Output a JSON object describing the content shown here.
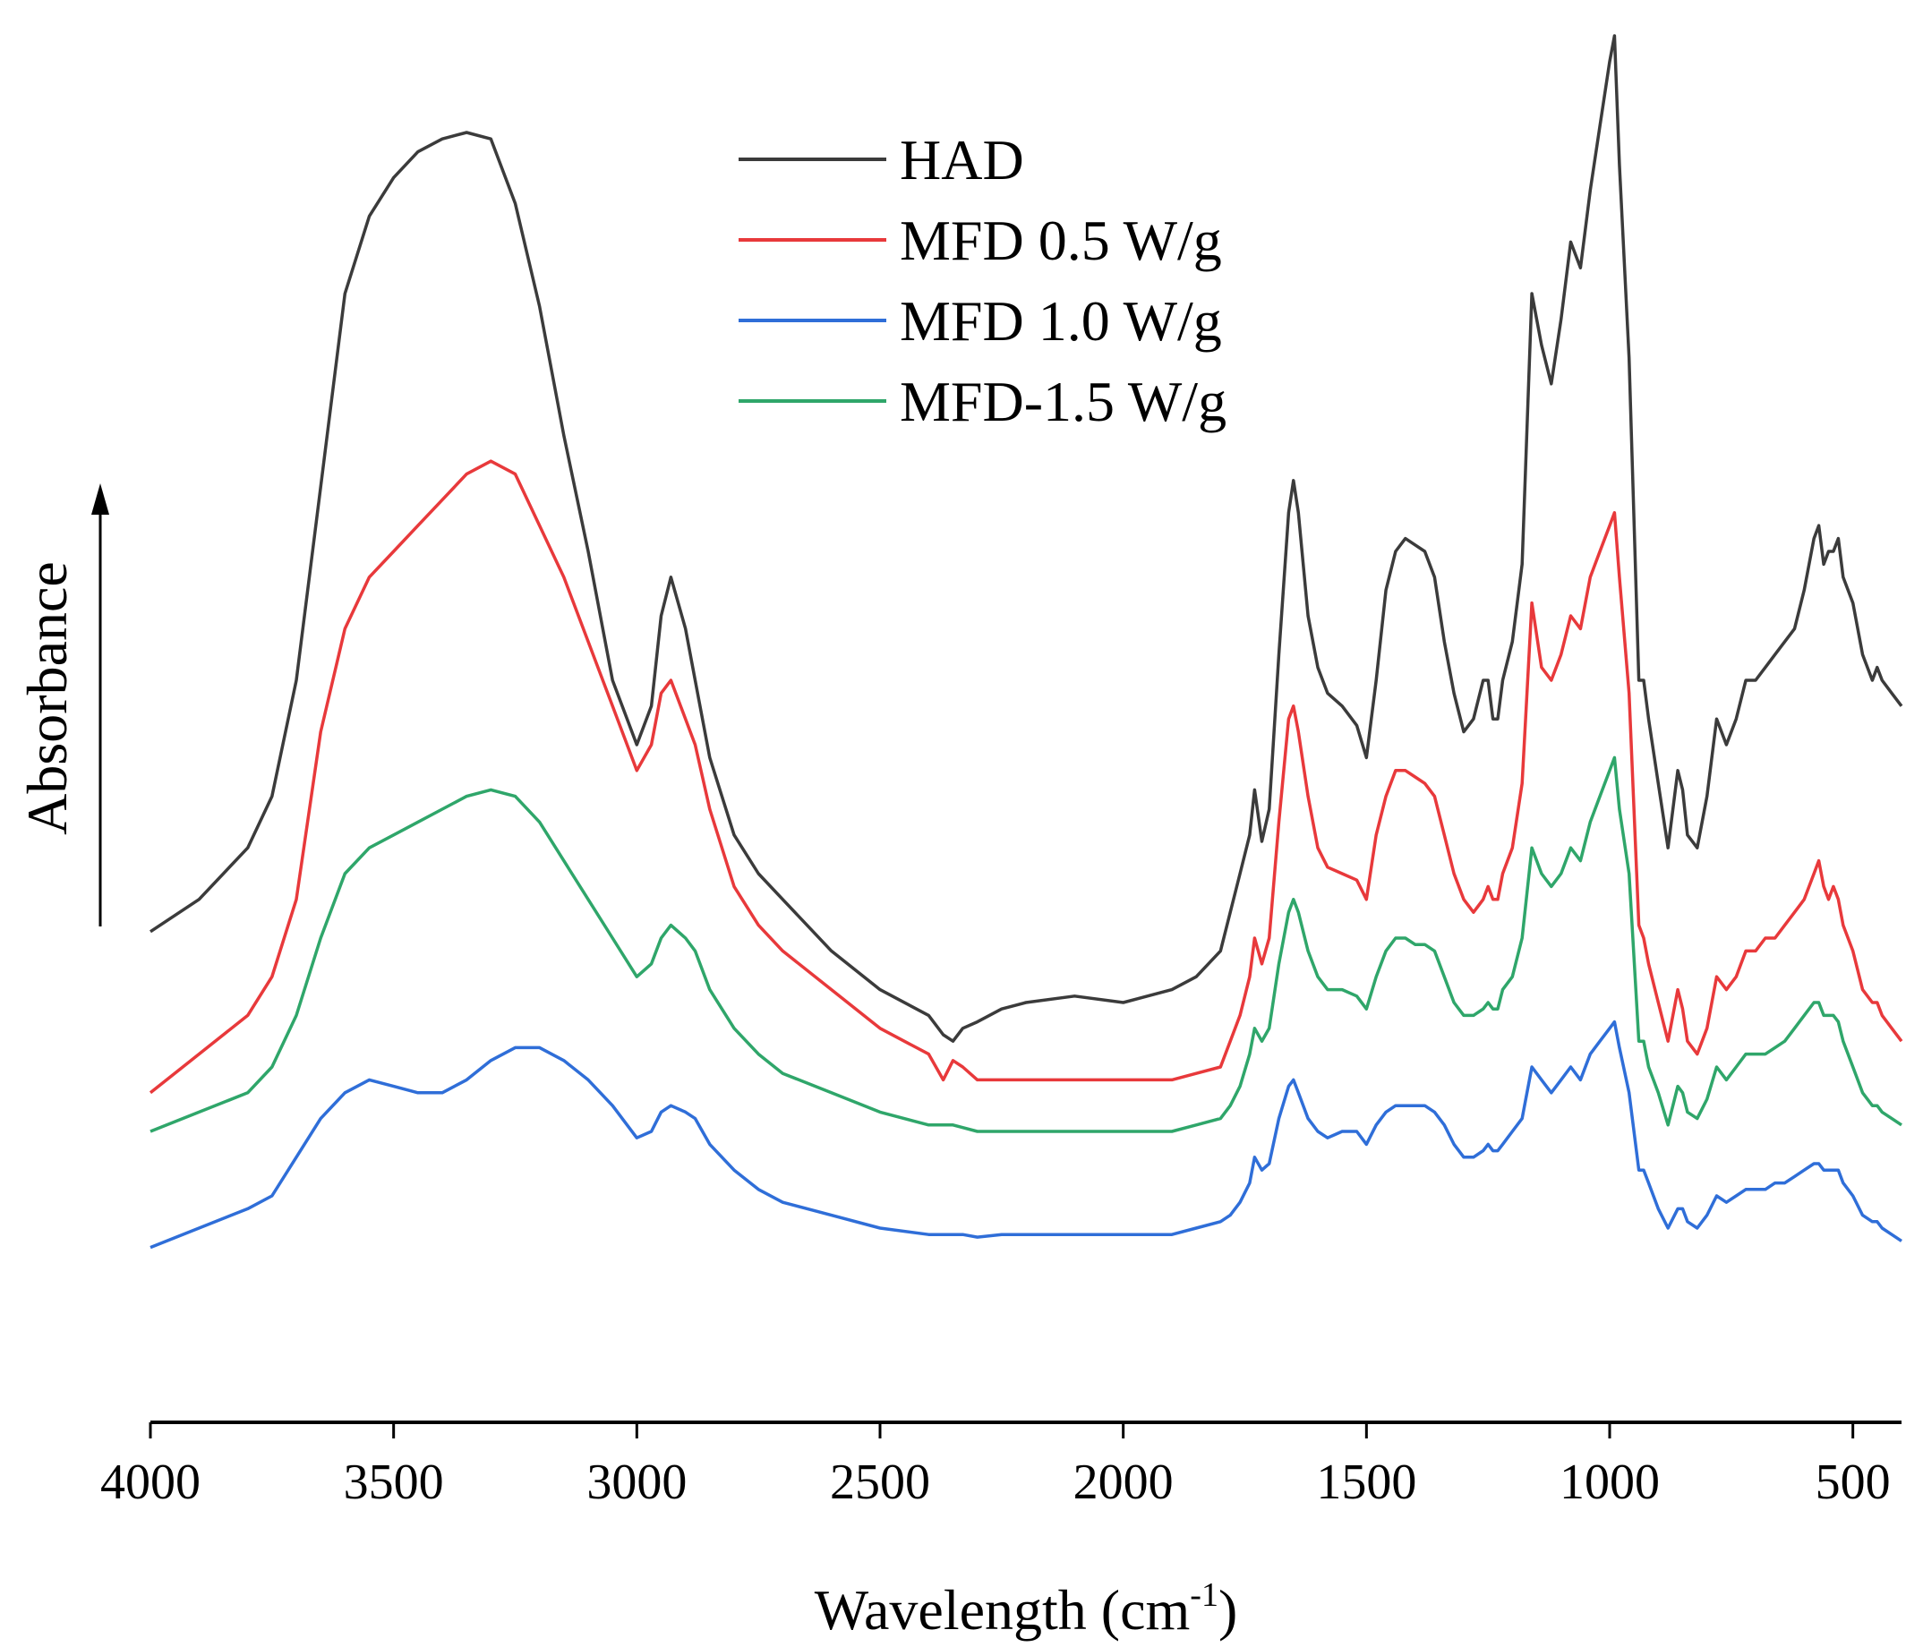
{
  "chart_data": {
    "type": "line",
    "title": "",
    "xlabel": "Wavelength (cm",
    "xlabel_sup": "-1",
    "xlabel_tail": ")",
    "ylabel": "Absorbance",
    "xlim": [
      4000,
      400
    ],
    "ylim": [
      0,
      1
    ],
    "x_reversed": true,
    "yaxis_style": "arrow-only, no ticks",
    "x_ticks": [
      4000,
      3500,
      3000,
      2500,
      2000,
      1500,
      1000,
      500
    ],
    "x_tick_labels": [
      "4000",
      "3500",
      "3000",
      "2500",
      "2000",
      "1500",
      "1000",
      "500"
    ],
    "grid": false,
    "legend_position": "top-center",
    "x": [
      4000,
      3900,
      3800,
      3750,
      3700,
      3650,
      3600,
      3550,
      3500,
      3450,
      3400,
      3350,
      3300,
      3250,
      3200,
      3150,
      3100,
      3050,
      3000,
      2970,
      2950,
      2930,
      2900,
      2880,
      2850,
      2800,
      2750,
      2700,
      2600,
      2500,
      2400,
      2370,
      2350,
      2330,
      2300,
      2250,
      2200,
      2100,
      2000,
      1900,
      1850,
      1800,
      1780,
      1760,
      1740,
      1730,
      1715,
      1700,
      1680,
      1660,
      1650,
      1640,
      1620,
      1600,
      1580,
      1550,
      1520,
      1500,
      1480,
      1460,
      1440,
      1420,
      1400,
      1380,
      1360,
      1340,
      1320,
      1300,
      1280,
      1260,
      1250,
      1240,
      1230,
      1220,
      1200,
      1180,
      1160,
      1140,
      1120,
      1100,
      1080,
      1060,
      1040,
      1020,
      1000,
      990,
      980,
      960,
      940,
      930,
      920,
      900,
      880,
      860,
      850,
      840,
      820,
      800,
      780,
      760,
      740,
      720,
      700,
      680,
      660,
      640,
      620,
      600,
      580,
      570,
      560,
      550,
      540,
      530,
      520,
      500,
      480,
      460,
      450,
      440,
      420,
      400
    ],
    "series": [
      {
        "name": "HAD",
        "color": "#3b3b3b",
        "values": [
          0.305,
          0.33,
          0.37,
          0.41,
          0.5,
          0.65,
          0.8,
          0.86,
          0.89,
          0.91,
          0.92,
          0.925,
          0.92,
          0.87,
          0.79,
          0.69,
          0.6,
          0.5,
          0.45,
          0.48,
          0.55,
          0.58,
          0.54,
          0.5,
          0.44,
          0.38,
          0.35,
          0.33,
          0.29,
          0.26,
          0.24,
          0.225,
          0.22,
          0.23,
          0.235,
          0.245,
          0.25,
          0.255,
          0.25,
          0.26,
          0.27,
          0.29,
          0.32,
          0.35,
          0.38,
          0.415,
          0.375,
          0.4,
          0.52,
          0.63,
          0.655,
          0.63,
          0.55,
          0.51,
          0.49,
          0.48,
          0.465,
          0.44,
          0.5,
          0.57,
          0.6,
          0.61,
          0.605,
          0.6,
          0.58,
          0.53,
          0.49,
          0.46,
          0.47,
          0.5,
          0.5,
          0.47,
          0.47,
          0.5,
          0.53,
          0.59,
          0.8,
          0.76,
          0.73,
          0.78,
          0.84,
          0.82,
          0.88,
          0.93,
          0.98,
          1.0,
          0.9,
          0.75,
          0.5,
          0.5,
          0.47,
          0.42,
          0.37,
          0.43,
          0.415,
          0.38,
          0.37,
          0.41,
          0.47,
          0.45,
          0.47,
          0.5,
          0.5,
          0.51,
          0.52,
          0.53,
          0.54,
          0.57,
          0.61,
          0.62,
          0.59,
          0.6,
          0.6,
          0.61,
          0.58,
          0.56,
          0.52,
          0.5,
          0.51,
          0.5,
          0.49,
          0.48
        ]
      },
      {
        "name": "MFD 0.5 W/g",
        "color": "#e8393b",
        "values": [
          0.18,
          0.21,
          0.24,
          0.27,
          0.33,
          0.46,
          0.54,
          0.58,
          0.6,
          0.62,
          0.64,
          0.66,
          0.67,
          0.66,
          0.62,
          0.58,
          0.53,
          0.48,
          0.43,
          0.45,
          0.49,
          0.5,
          0.47,
          0.45,
          0.4,
          0.34,
          0.31,
          0.29,
          0.26,
          0.23,
          0.21,
          0.19,
          0.205,
          0.2,
          0.19,
          0.19,
          0.19,
          0.19,
          0.19,
          0.19,
          0.195,
          0.2,
          0.22,
          0.24,
          0.27,
          0.3,
          0.28,
          0.3,
          0.39,
          0.47,
          0.48,
          0.46,
          0.41,
          0.37,
          0.355,
          0.35,
          0.345,
          0.33,
          0.38,
          0.41,
          0.43,
          0.43,
          0.425,
          0.42,
          0.41,
          0.38,
          0.35,
          0.33,
          0.32,
          0.33,
          0.34,
          0.33,
          0.33,
          0.35,
          0.37,
          0.42,
          0.56,
          0.51,
          0.5,
          0.52,
          0.55,
          0.54,
          0.58,
          0.6,
          0.62,
          0.63,
          0.58,
          0.49,
          0.31,
          0.3,
          0.28,
          0.25,
          0.22,
          0.26,
          0.245,
          0.22,
          0.21,
          0.23,
          0.27,
          0.26,
          0.27,
          0.29,
          0.29,
          0.3,
          0.3,
          0.31,
          0.32,
          0.33,
          0.35,
          0.36,
          0.34,
          0.33,
          0.34,
          0.33,
          0.31,
          0.29,
          0.26,
          0.25,
          0.25,
          0.24,
          0.23,
          0.22
        ]
      },
      {
        "name": "MFD 1.0 W/g",
        "color": "#2f6ed8",
        "values": [
          0.06,
          0.075,
          0.09,
          0.1,
          0.13,
          0.16,
          0.18,
          0.19,
          0.185,
          0.18,
          0.18,
          0.19,
          0.205,
          0.215,
          0.215,
          0.205,
          0.19,
          0.17,
          0.145,
          0.15,
          0.165,
          0.17,
          0.165,
          0.16,
          0.14,
          0.12,
          0.105,
          0.095,
          0.085,
          0.075,
          0.07,
          0.07,
          0.07,
          0.07,
          0.068,
          0.07,
          0.07,
          0.07,
          0.07,
          0.07,
          0.075,
          0.08,
          0.085,
          0.095,
          0.11,
          0.13,
          0.12,
          0.125,
          0.16,
          0.185,
          0.19,
          0.18,
          0.16,
          0.15,
          0.145,
          0.15,
          0.15,
          0.14,
          0.155,
          0.165,
          0.17,
          0.17,
          0.17,
          0.17,
          0.165,
          0.155,
          0.14,
          0.13,
          0.13,
          0.135,
          0.14,
          0.135,
          0.135,
          0.14,
          0.15,
          0.16,
          0.2,
          0.19,
          0.18,
          0.19,
          0.2,
          0.19,
          0.21,
          0.22,
          0.23,
          0.235,
          0.215,
          0.18,
          0.12,
          0.12,
          0.11,
          0.09,
          0.075,
          0.09,
          0.09,
          0.08,
          0.075,
          0.085,
          0.1,
          0.095,
          0.1,
          0.105,
          0.105,
          0.105,
          0.11,
          0.11,
          0.115,
          0.12,
          0.125,
          0.125,
          0.12,
          0.12,
          0.12,
          0.12,
          0.11,
          0.1,
          0.085,
          0.08,
          0.08,
          0.075,
          0.07,
          0.065
        ]
      },
      {
        "name": "MFD-1.5 W/g",
        "color": "#2fa66a",
        "values": [
          0.15,
          0.165,
          0.18,
          0.2,
          0.24,
          0.3,
          0.35,
          0.37,
          0.38,
          0.39,
          0.4,
          0.41,
          0.415,
          0.41,
          0.39,
          0.36,
          0.33,
          0.3,
          0.27,
          0.28,
          0.3,
          0.31,
          0.3,
          0.29,
          0.26,
          0.23,
          0.21,
          0.195,
          0.18,
          0.165,
          0.155,
          0.155,
          0.155,
          0.153,
          0.15,
          0.15,
          0.15,
          0.15,
          0.15,
          0.15,
          0.155,
          0.16,
          0.17,
          0.185,
          0.21,
          0.23,
          0.22,
          0.23,
          0.28,
          0.32,
          0.33,
          0.32,
          0.29,
          0.27,
          0.26,
          0.26,
          0.255,
          0.245,
          0.27,
          0.29,
          0.3,
          0.3,
          0.295,
          0.295,
          0.29,
          0.27,
          0.25,
          0.24,
          0.24,
          0.245,
          0.25,
          0.245,
          0.245,
          0.26,
          0.27,
          0.3,
          0.37,
          0.35,
          0.34,
          0.35,
          0.37,
          0.36,
          0.39,
          0.41,
          0.43,
          0.44,
          0.4,
          0.35,
          0.22,
          0.22,
          0.2,
          0.18,
          0.155,
          0.185,
          0.18,
          0.165,
          0.16,
          0.175,
          0.2,
          0.19,
          0.2,
          0.21,
          0.21,
          0.21,
          0.215,
          0.22,
          0.23,
          0.24,
          0.25,
          0.25,
          0.24,
          0.24,
          0.24,
          0.235,
          0.22,
          0.2,
          0.18,
          0.17,
          0.17,
          0.165,
          0.16,
          0.155
        ]
      }
    ]
  }
}
